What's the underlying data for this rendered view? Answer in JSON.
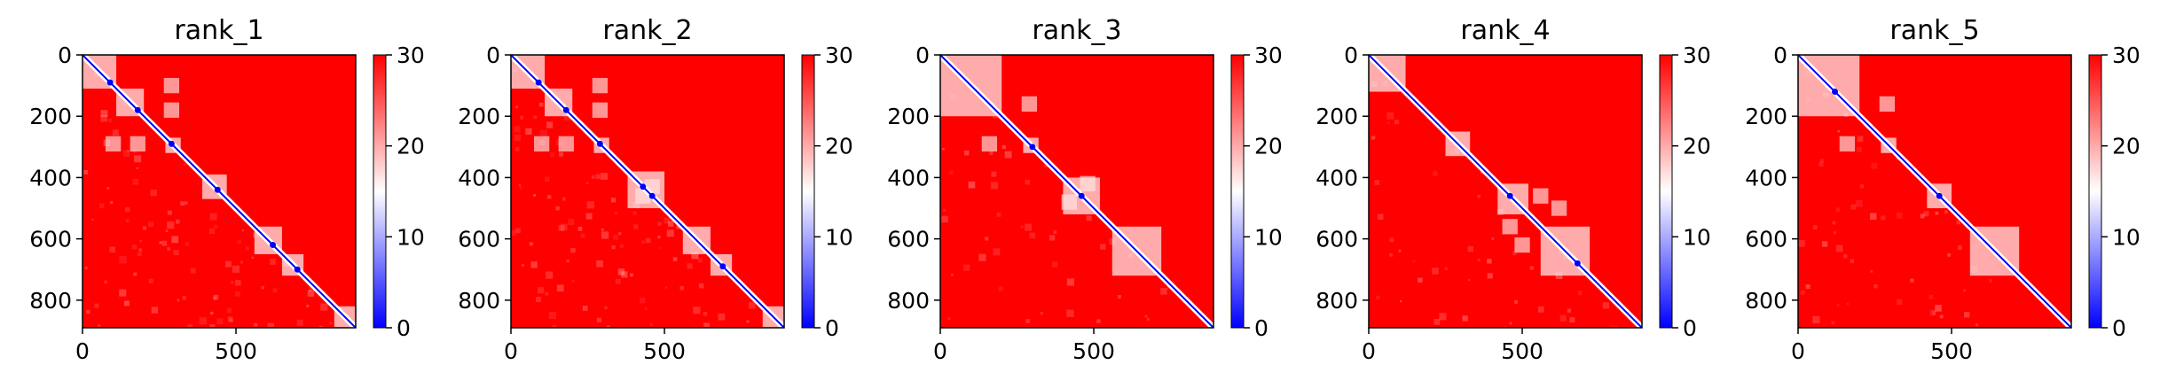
{
  "figure": {
    "colormap": [
      "#0000ff",
      "#ffffff",
      "#ff0000"
    ],
    "background_color": "#ff0000",
    "diagonal_color": "#0000ff"
  },
  "chart_data": [
    {
      "type": "heatmap",
      "title": "rank_1",
      "xlabel": "",
      "ylabel": "",
      "xlim": [
        0,
        890
      ],
      "ylim": [
        890,
        0
      ],
      "xticks": [
        0,
        500
      ],
      "yticks": [
        0,
        200,
        400,
        600,
        800
      ],
      "colorbar": {
        "vmin": 0,
        "vmax": 30,
        "ticks": [
          0,
          10,
          20,
          30
        ]
      },
      "contact_domains": [
        [
          0,
          110
        ],
        [
          110,
          200
        ],
        [
          270,
          320
        ],
        [
          390,
          470
        ],
        [
          560,
          650
        ],
        [
          650,
          720
        ],
        [
          820,
          890
        ]
      ],
      "hotspots": [
        [
          90,
          90
        ],
        [
          180,
          180
        ],
        [
          290,
          290
        ],
        [
          440,
          440
        ],
        [
          620,
          620
        ],
        [
          700,
          700
        ]
      ],
      "off_diagonal_blocks": [
        [
          180,
          290
        ],
        [
          290,
          180
        ],
        [
          100,
          290
        ],
        [
          290,
          100
        ]
      ],
      "noise_level": 0.25
    },
    {
      "type": "heatmap",
      "title": "rank_2",
      "xlabel": "",
      "ylabel": "",
      "xlim": [
        0,
        890
      ],
      "ylim": [
        890,
        0
      ],
      "xticks": [
        0,
        500
      ],
      "yticks": [
        0,
        200,
        400,
        600,
        800
      ],
      "colorbar": {
        "vmin": 0,
        "vmax": 30,
        "ticks": [
          0,
          10,
          20,
          30
        ]
      },
      "contact_domains": [
        [
          0,
          110
        ],
        [
          110,
          200
        ],
        [
          270,
          320
        ],
        [
          380,
          500
        ],
        [
          560,
          650
        ],
        [
          650,
          720
        ],
        [
          820,
          890
        ]
      ],
      "hotspots": [
        [
          90,
          90
        ],
        [
          180,
          180
        ],
        [
          290,
          290
        ],
        [
          430,
          430
        ],
        [
          460,
          460
        ],
        [
          690,
          690
        ]
      ],
      "off_diagonal_blocks": [
        [
          180,
          290
        ],
        [
          290,
          180
        ],
        [
          100,
          290
        ],
        [
          290,
          100
        ],
        [
          430,
          460
        ],
        [
          460,
          430
        ]
      ],
      "noise_level": 0.25
    },
    {
      "type": "heatmap",
      "title": "rank_3",
      "xlabel": "",
      "ylabel": "",
      "xlim": [
        0,
        890
      ],
      "ylim": [
        890,
        0
      ],
      "xticks": [
        0,
        500
      ],
      "yticks": [
        0,
        200,
        400,
        600,
        800
      ],
      "colorbar": {
        "vmin": 0,
        "vmax": 30,
        "ticks": [
          0,
          10,
          20,
          30
        ]
      },
      "contact_domains": [
        [
          0,
          200
        ],
        [
          270,
          320
        ],
        [
          400,
          520
        ],
        [
          560,
          720
        ]
      ],
      "hotspots": [
        [
          460,
          460
        ],
        [
          300,
          300
        ]
      ],
      "off_diagonal_blocks": [
        [
          160,
          290
        ],
        [
          290,
          160
        ],
        [
          420,
          480
        ],
        [
          480,
          420
        ]
      ],
      "noise_level": 0.12
    },
    {
      "type": "heatmap",
      "title": "rank_4",
      "xlabel": "",
      "ylabel": "",
      "xlim": [
        0,
        890
      ],
      "ylim": [
        890,
        0
      ],
      "xticks": [
        0,
        500
      ],
      "yticks": [
        0,
        200,
        400,
        600,
        800
      ],
      "colorbar": {
        "vmin": 0,
        "vmax": 30,
        "ticks": [
          0,
          10,
          20,
          30
        ]
      },
      "contact_domains": [
        [
          0,
          120
        ],
        [
          250,
          330
        ],
        [
          420,
          520
        ],
        [
          560,
          720
        ]
      ],
      "hotspots": [
        [
          460,
          460
        ],
        [
          680,
          680
        ]
      ],
      "off_diagonal_blocks": [
        [
          460,
          560
        ],
        [
          560,
          460
        ],
        [
          500,
          620
        ],
        [
          620,
          500
        ]
      ],
      "noise_level": 0.12
    },
    {
      "type": "heatmap",
      "title": "rank_5",
      "xlabel": "",
      "ylabel": "",
      "xlim": [
        0,
        890
      ],
      "ylim": [
        890,
        0
      ],
      "xticks": [
        0,
        500
      ],
      "yticks": [
        0,
        200,
        400,
        600,
        800
      ],
      "colorbar": {
        "vmin": 0,
        "vmax": 30,
        "ticks": [
          0,
          10,
          20,
          30
        ]
      },
      "contact_domains": [
        [
          0,
          200
        ],
        [
          270,
          320
        ],
        [
          420,
          500
        ],
        [
          560,
          720
        ]
      ],
      "hotspots": [
        [
          460,
          460
        ],
        [
          120,
          120
        ]
      ],
      "off_diagonal_blocks": [
        [
          160,
          290
        ],
        [
          290,
          160
        ]
      ],
      "noise_level": 0.14
    }
  ]
}
